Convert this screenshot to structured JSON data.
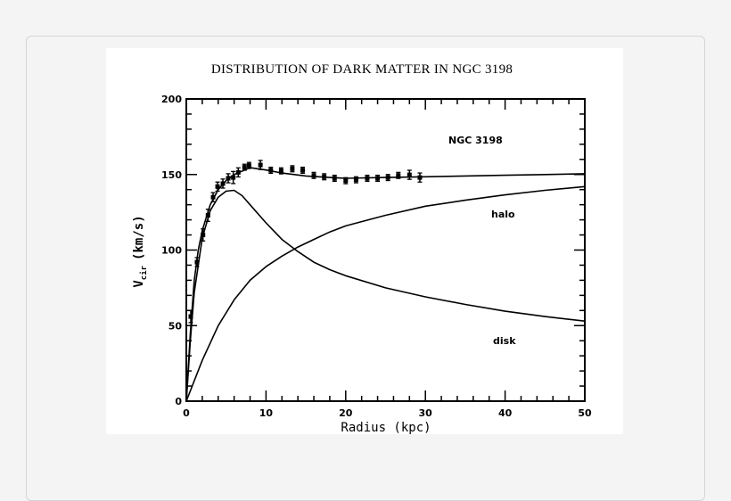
{
  "chart_data": {
    "type": "scatter",
    "title": "DISTRIBUTION OF DARK MATTER IN NGC 3198",
    "xlabel": "Radius  (kpc)",
    "ylabel": "V",
    "ylabel_sub": "cir",
    "ylabel_unit": "(km/s)",
    "xlim": [
      0,
      50
    ],
    "ylim": [
      0,
      200
    ],
    "xticks": [
      0,
      10,
      20,
      30,
      40,
      50
    ],
    "yticks": [
      0,
      50,
      100,
      150,
      200
    ],
    "grid": false,
    "annotations": {
      "galaxy": "NGC 3198",
      "halo": "halo",
      "disk": "disk"
    },
    "points": {
      "x": [
        0.56,
        1.34,
        2.09,
        2.72,
        3.36,
        3.92,
        4.59,
        5.26,
        5.89,
        6.52,
        7.3,
        7.87,
        9.3,
        10.6,
        11.9,
        13.3,
        14.6,
        16.0,
        17.3,
        18.6,
        20.0,
        21.3,
        22.7,
        24.0,
        25.3,
        26.6,
        28.0,
        29.3
      ],
      "y": [
        56,
        92,
        110,
        123,
        135,
        142,
        144,
        147.5,
        148,
        151.4,
        154.8,
        156,
        156.3,
        152.8,
        152.4,
        153.8,
        152.8,
        149.4,
        148.5,
        147.5,
        145.9,
        146.5,
        147.5,
        147.5,
        148,
        149.4,
        149.8,
        148
      ],
      "yerr": [
        4,
        3,
        4,
        4,
        3,
        3,
        3,
        3,
        4,
        3,
        2,
        2,
        3,
        2,
        2,
        2,
        2,
        2,
        2,
        2,
        2,
        2,
        2,
        2,
        2,
        2,
        3,
        3
      ]
    },
    "curves": [
      {
        "name": "total",
        "x": [
          0,
          0.5,
          1,
          1.5,
          2,
          3,
          4,
          5,
          6,
          8,
          10,
          12,
          15,
          18,
          20,
          25,
          30,
          35,
          40,
          45,
          50
        ],
        "y": [
          0,
          45,
          80,
          100,
          113,
          130,
          140,
          146,
          150,
          154.5,
          153,
          151,
          149,
          148,
          147.5,
          148,
          148.5,
          149,
          149.5,
          150,
          150.5
        ]
      },
      {
        "name": "halo",
        "x": [
          0,
          2,
          4,
          6,
          8,
          10,
          12,
          14,
          16,
          18,
          20,
          25,
          30,
          35,
          40,
          45,
          50
        ],
        "y": [
          0,
          27,
          50,
          67,
          80,
          89,
          96,
          102,
          107,
          112,
          116,
          123,
          129,
          133,
          136.5,
          139.5,
          142
        ]
      },
      {
        "name": "disk",
        "x": [
          0,
          0.5,
          1,
          2,
          3,
          4,
          5,
          6,
          7,
          8,
          10,
          12,
          14,
          16,
          18,
          20,
          25,
          30,
          35,
          40,
          45,
          50
        ],
        "y": [
          0,
          40,
          72,
          108,
          126,
          135,
          139,
          139.5,
          136,
          130,
          118,
          107,
          99,
          92,
          87,
          83,
          75,
          69,
          64,
          59.5,
          56,
          53
        ]
      }
    ]
  }
}
